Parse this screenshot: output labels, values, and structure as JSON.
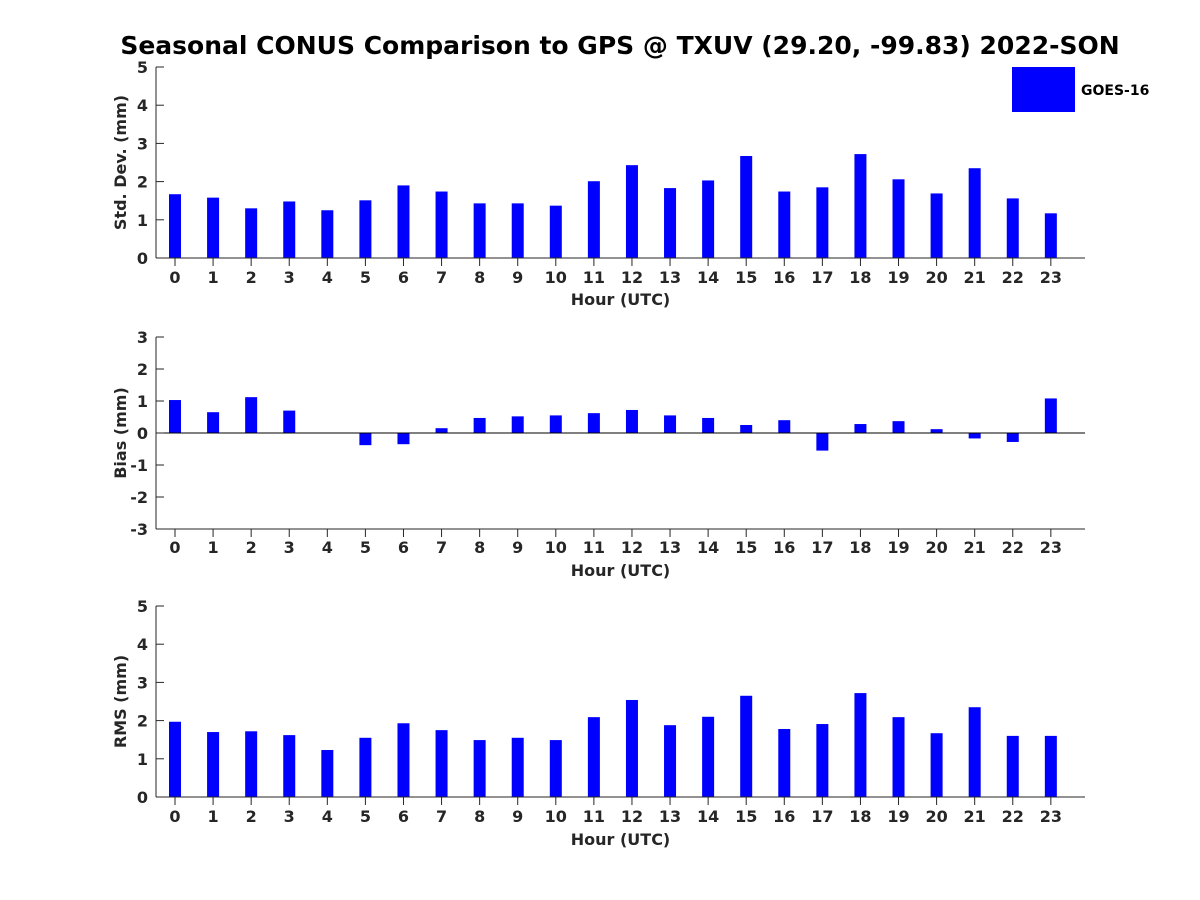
{
  "title": "Seasonal CONUS Comparison to GPS @ TXUV (29.20, -99.83) 2022-SON",
  "legend": {
    "label": "GOES-16",
    "color": "#0000ff",
    "placement": "top-right"
  },
  "chart_data": [
    {
      "type": "bar",
      "ylabel": "Std. Dev. (mm)",
      "xlabel": "Hour (UTC)",
      "ylim": [
        0,
        5
      ],
      "yticks": [
        "0",
        "1",
        "2",
        "3",
        "4",
        "5"
      ],
      "categories": [
        "0",
        "1",
        "2",
        "3",
        "4",
        "5",
        "6",
        "7",
        "8",
        "9",
        "10",
        "11",
        "12",
        "13",
        "14",
        "15",
        "16",
        "17",
        "18",
        "19",
        "20",
        "21",
        "22",
        "23"
      ],
      "series": [
        {
          "name": "GOES-16",
          "values": [
            1.67,
            1.58,
            1.3,
            1.48,
            1.25,
            1.51,
            1.9,
            1.74,
            1.43,
            1.43,
            1.37,
            2.01,
            2.43,
            1.83,
            2.03,
            2.67,
            1.74,
            1.85,
            2.72,
            2.06,
            1.69,
            2.35,
            1.56,
            1.17
          ]
        }
      ],
      "grid": false
    },
    {
      "type": "bar",
      "ylabel": "Bias (mm)",
      "xlabel": "Hour (UTC)",
      "ylim": [
        -3,
        3
      ],
      "yticks": [
        "-3",
        "-2",
        "-1",
        "0",
        "1",
        "2",
        "3"
      ],
      "categories": [
        "0",
        "1",
        "2",
        "3",
        "4",
        "5",
        "6",
        "7",
        "8",
        "9",
        "10",
        "11",
        "12",
        "13",
        "14",
        "15",
        "16",
        "17",
        "18",
        "19",
        "20",
        "21",
        "22",
        "23"
      ],
      "series": [
        {
          "name": "GOES-16",
          "values": [
            1.03,
            0.65,
            1.12,
            0.7,
            0.0,
            -0.38,
            -0.35,
            0.15,
            0.47,
            0.52,
            0.55,
            0.62,
            0.72,
            0.55,
            0.47,
            0.25,
            0.4,
            -0.55,
            0.28,
            0.37,
            0.12,
            -0.17,
            -0.28,
            1.08
          ]
        }
      ],
      "zero_line": true,
      "grid": false
    },
    {
      "type": "bar",
      "ylabel": "RMS (mm)",
      "xlabel": "Hour (UTC)",
      "ylim": [
        0,
        5
      ],
      "yticks": [
        "0",
        "1",
        "2",
        "3",
        "4",
        "5"
      ],
      "categories": [
        "0",
        "1",
        "2",
        "3",
        "4",
        "5",
        "6",
        "7",
        "8",
        "9",
        "10",
        "11",
        "12",
        "13",
        "14",
        "15",
        "16",
        "17",
        "18",
        "19",
        "20",
        "21",
        "22",
        "23"
      ],
      "series": [
        {
          "name": "GOES-16",
          "values": [
            1.97,
            1.7,
            1.72,
            1.62,
            1.23,
            1.55,
            1.93,
            1.75,
            1.49,
            1.55,
            1.49,
            2.09,
            2.54,
            1.88,
            2.1,
            2.65,
            1.78,
            1.91,
            2.72,
            2.09,
            1.67,
            2.35,
            1.6,
            1.6
          ]
        }
      ],
      "grid": false
    }
  ]
}
